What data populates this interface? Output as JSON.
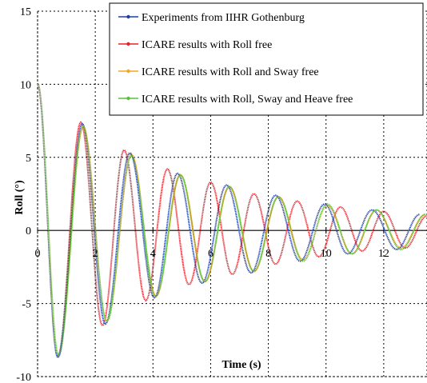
{
  "chart_data": {
    "type": "line",
    "xlabel": "Time (s)",
    "ylabel": "Roll (°)",
    "xlim": [
      0,
      13.5
    ],
    "ylim": [
      -10,
      15
    ],
    "x_ticks": [
      0,
      2,
      4,
      6,
      8,
      10,
      12
    ],
    "x_tick_labels": [
      "0",
      "2",
      "4",
      "6",
      "8",
      "10",
      "12"
    ],
    "y_ticks": [
      -10,
      -5,
      0,
      5,
      10,
      15
    ],
    "y_tick_labels": [
      "-10",
      "-5",
      "0",
      "5",
      "10",
      "15"
    ],
    "grid": true,
    "grid_style": "dotted",
    "legend_position": "top-right",
    "series": [
      {
        "name": "Experiments from IIHR Gothenburg",
        "color": "#1f3fa8",
        "marker": "dot",
        "x": [
          0,
          0.7,
          1.55,
          2.35,
          3.2,
          4.05,
          4.85,
          5.7,
          6.55,
          7.4,
          8.25,
          9.1,
          9.95,
          10.75,
          11.6,
          12.45,
          13.25
        ],
        "y": [
          10,
          -8.7,
          7.3,
          -6.4,
          5.3,
          -4.6,
          3.9,
          -3.6,
          3.1,
          -2.9,
          2.4,
          -2.1,
          1.8,
          -1.6,
          1.4,
          -1.3,
          1.1
        ]
      },
      {
        "name": "ICARE results with Roll free",
        "color": "#e8202a",
        "marker": "dot",
        "x": [
          0,
          0.7,
          1.5,
          2.25,
          3.0,
          3.75,
          4.5,
          5.25,
          6.0,
          6.75,
          7.5,
          8.25,
          9.0,
          9.75,
          10.5,
          11.25,
          12.0,
          12.75,
          13.5
        ],
        "y": [
          10,
          -8.6,
          7.4,
          -6.5,
          5.5,
          -4.8,
          4.2,
          -3.7,
          3.3,
          -3.0,
          2.5,
          -2.3,
          2.0,
          -1.8,
          1.6,
          -1.4,
          1.3,
          -1.2,
          1.0
        ]
      },
      {
        "name": "ICARE results with Roll and Sway free",
        "color": "#f5a623",
        "marker": "dot",
        "x": [
          0,
          0.72,
          1.58,
          2.4,
          3.25,
          4.1,
          4.95,
          5.8,
          6.65,
          7.5,
          8.35,
          9.2,
          10.05,
          10.9,
          11.75,
          12.6,
          13.45
        ],
        "y": [
          10,
          -8.6,
          7.1,
          -6.2,
          5.2,
          -4.5,
          3.8,
          -3.5,
          3.0,
          -2.8,
          2.3,
          -2.0,
          1.7,
          -1.6,
          1.4,
          -1.2,
          1.1
        ]
      },
      {
        "name": "ICARE results with Roll, Sway and Heave free",
        "color": "#5cbf3a",
        "marker": "dot",
        "x": [
          0,
          0.72,
          1.58,
          2.4,
          3.25,
          4.1,
          4.95,
          5.8,
          6.65,
          7.5,
          8.35,
          9.2,
          10.05,
          10.9,
          11.75,
          12.6,
          13.45
        ],
        "y": [
          10,
          -8.5,
          7.1,
          -6.2,
          5.1,
          -4.5,
          3.8,
          -3.5,
          3.0,
          -2.8,
          2.3,
          -2.1,
          1.8,
          -1.6,
          1.4,
          -1.3,
          1.1
        ]
      }
    ]
  }
}
